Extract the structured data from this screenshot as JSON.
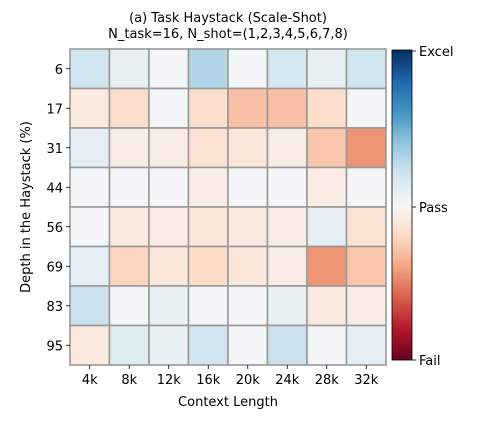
{
  "chart_data": {
    "type": "heatmap",
    "title": "(a) Task Haystack (Scale-Shot)",
    "subtitle": "N_task=16, N_shot=(1,2,3,4,5,6,7,8)",
    "xlabel": "Context Length",
    "ylabel": "Depth in the Haystack (%)",
    "x_categories": [
      "4k",
      "8k",
      "12k",
      "16k",
      "20k",
      "24k",
      "28k",
      "32k"
    ],
    "y_categories": [
      "6",
      "17",
      "31",
      "44",
      "56",
      "69",
      "83",
      "95"
    ],
    "values": [
      [
        0.2,
        0.08,
        0.02,
        0.3,
        0.02,
        0.18,
        0.08,
        0.2
      ],
      [
        -0.1,
        -0.18,
        0.02,
        -0.18,
        -0.3,
        -0.3,
        -0.18,
        0.02
      ],
      [
        0.1,
        -0.08,
        -0.08,
        -0.15,
        -0.12,
        -0.08,
        -0.28,
        -0.45
      ],
      [
        0.02,
        0.02,
        0.02,
        -0.08,
        0.02,
        0.02,
        -0.08,
        0.02
      ],
      [
        0.02,
        -0.1,
        -0.08,
        -0.12,
        -0.1,
        -0.08,
        0.1,
        -0.15
      ],
      [
        0.1,
        -0.22,
        -0.12,
        -0.2,
        -0.12,
        -0.08,
        -0.45,
        -0.28
      ],
      [
        0.22,
        0.02,
        0.08,
        0.02,
        0.02,
        0.08,
        -0.1,
        -0.08
      ],
      [
        -0.1,
        0.12,
        0.08,
        0.2,
        0.02,
        0.22,
        0.02,
        0.1
      ]
    ],
    "vmin": -1,
    "vmax": 1,
    "colormap": "RdBu",
    "cell_border_color": "#999999",
    "colorbar_labels": {
      "max": "Excel",
      "mid": "Pass",
      "min": "Fail"
    }
  }
}
